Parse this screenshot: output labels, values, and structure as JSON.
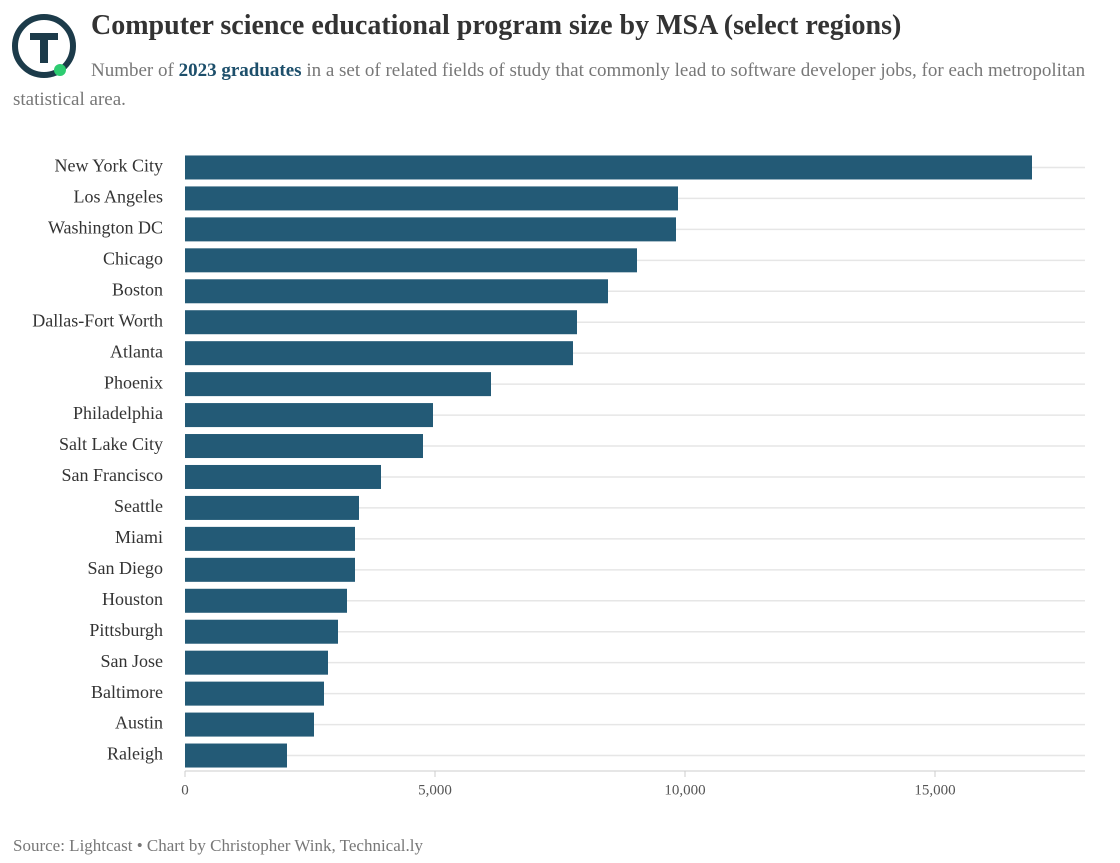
{
  "chart_data": {
    "type": "bar",
    "orientation": "horizontal",
    "title": "Computer science educational program size by MSA (select regions)",
    "subtitle_parts": [
      "Number of ",
      "2023 graduates",
      " in a set of related fields of study that commonly lead to software developer jobs, for each metropolitan statistical area."
    ],
    "source": "Source: Lightcast • Chart by Christopher Wink, Technical.ly",
    "categories": [
      "New York City",
      "Los Angeles",
      "Washington DC",
      "Chicago",
      "Boston",
      "Dallas-Fort Worth",
      "Atlanta",
      "Phoenix",
      "Philadelphia",
      "Salt Lake City",
      "San Francisco",
      "Seattle",
      "Miami",
      "San Diego",
      "Houston",
      "Pittsburgh",
      "San Jose",
      "Baltimore",
      "Austin",
      "Raleigh"
    ],
    "values": [
      16940,
      9860,
      9820,
      9040,
      8460,
      7840,
      7760,
      6120,
      4960,
      4760,
      3920,
      3480,
      3400,
      3400,
      3240,
      3060,
      2860,
      2780,
      2580,
      2040
    ],
    "color": "#235a76",
    "xlim": [
      0,
      18000
    ],
    "xticks": [
      0,
      {
        "value": 5000,
        "label": "5,000"
      },
      {
        "value": 10000,
        "label": "10,000"
      },
      {
        "value": 15000,
        "label": "15,000"
      }
    ],
    "grid": true
  }
}
